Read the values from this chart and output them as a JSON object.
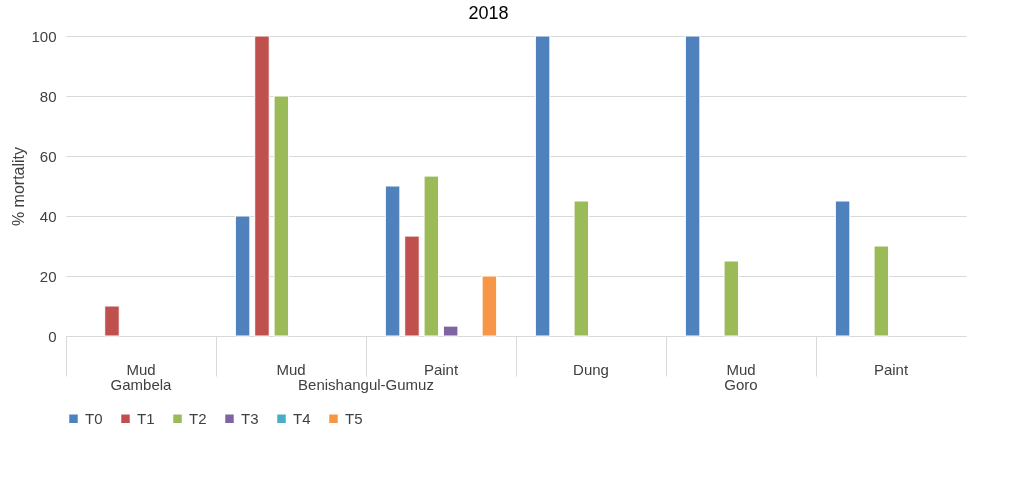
{
  "chart_data": {
    "type": "bar",
    "title": "2018",
    "ylabel": "% mortality",
    "categories": [
      "Mud",
      "Mud",
      "Paint",
      "Dung",
      "Mud",
      "Paint"
    ],
    "series": [
      {
        "name": "T0",
        "color": "#4f81bd",
        "values": [
          null,
          40,
          50,
          100,
          100,
          45
        ]
      },
      {
        "name": "T1",
        "color": "#c0504d",
        "values": [
          10,
          100,
          33.3,
          null,
          null,
          null
        ]
      },
      {
        "name": "T2",
        "color": "#9bbb59",
        "values": [
          null,
          80,
          53.3,
          45,
          25,
          30
        ]
      },
      {
        "name": "T3",
        "color": "#8064a2",
        "values": [
          null,
          null,
          3.3,
          null,
          null,
          null
        ]
      },
      {
        "name": "T4",
        "color": "#4bacc6",
        "values": [
          null,
          null,
          null,
          null,
          null,
          null
        ]
      },
      {
        "name": "T5",
        "color": "#f79646",
        "values": [
          null,
          null,
          20,
          null,
          null,
          null
        ]
      }
    ],
    "ylim": [
      0,
      100
    ],
    "yticks": [
      0,
      20,
      40,
      60,
      80,
      100
    ],
    "grid": "y",
    "legend": "bottom",
    "annotations": [
      "Gambela",
      "Benishangul-Gumuz",
      "Goro"
    ]
  }
}
